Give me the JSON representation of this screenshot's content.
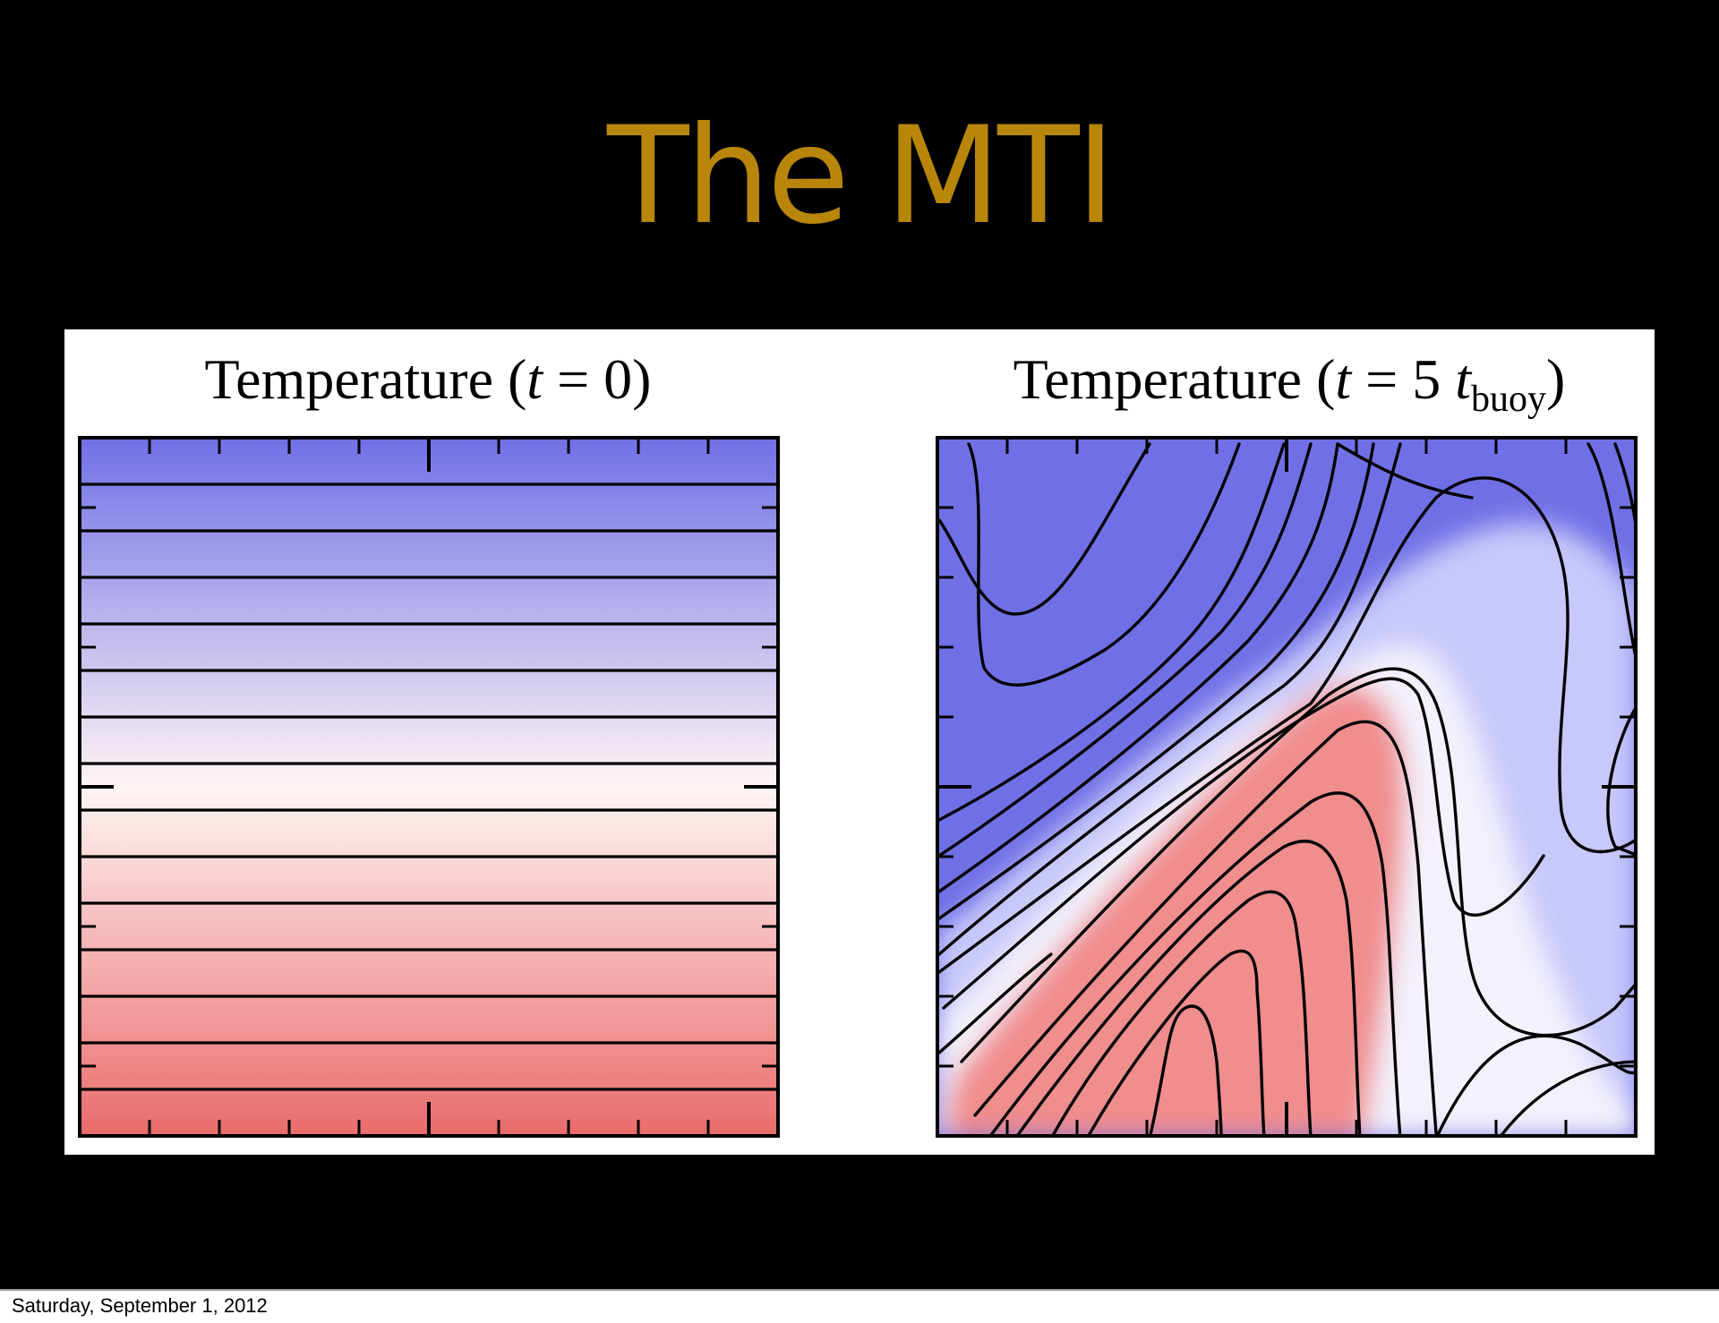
{
  "slide": {
    "title": "The MTI",
    "title_color": "#b8860b",
    "background": "#000000"
  },
  "panels": {
    "left": {
      "title_prefix": "Temperature (",
      "title_var": "t",
      "title_rest": " = 0)"
    },
    "right": {
      "title_prefix": "Temperature (",
      "title_var": "t",
      "title_mid": " = 5 ",
      "title_var2": "t",
      "title_sub": "buoy",
      "title_end": ")"
    }
  },
  "colors": {
    "cold": "#7070e6",
    "neutral": "#fff4f4",
    "warm": "#ea6b6b",
    "contour": "#000000"
  },
  "footer": {
    "date": "Saturday, September 1, 2012"
  }
}
